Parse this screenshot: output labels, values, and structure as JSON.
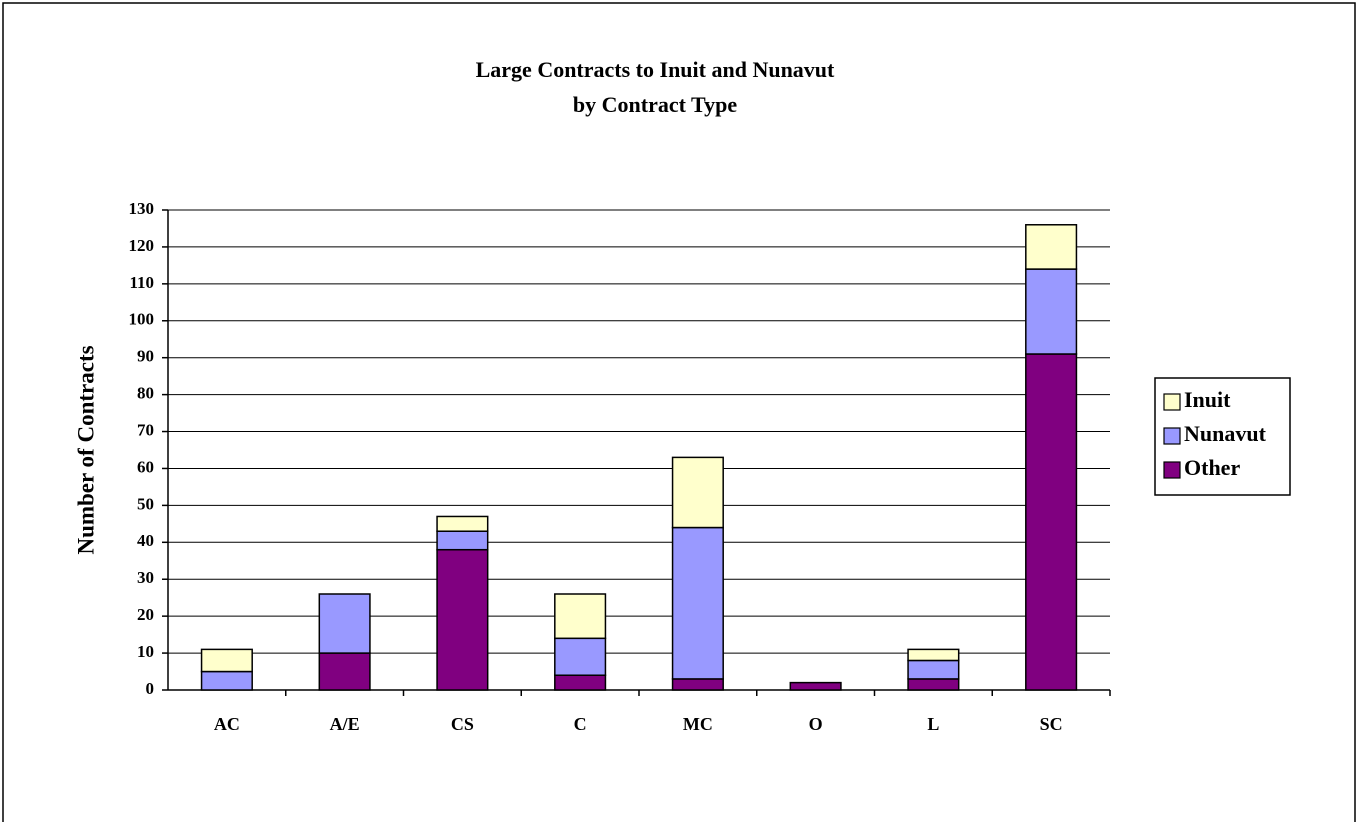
{
  "chart_data": {
    "type": "stacked_bar",
    "title": "Large Contracts to Inuit and Nunavut",
    "subtitle": "by Contract Type",
    "y_label": "Number of Contracts",
    "categories": [
      "AC",
      "A/E",
      "CS",
      "C",
      "MC",
      "O",
      "L",
      "SC"
    ],
    "series": [
      {
        "name": "Inuit",
        "color": "#ffffcc",
        "values": [
          6,
          0,
          4,
          12,
          19,
          0,
          3,
          12
        ]
      },
      {
        "name": "Nunavut",
        "color": "#9999ff",
        "values": [
          5,
          16,
          5,
          10,
          41,
          0,
          5,
          23
        ]
      },
      {
        "name": "Other",
        "color": "#800080",
        "values": [
          0,
          10,
          38,
          4,
          3,
          2,
          3,
          91
        ]
      }
    ],
    "ylim": [
      0,
      130
    ],
    "yticks": [
      0,
      10,
      20,
      30,
      40,
      50,
      60,
      70,
      80,
      90,
      100,
      110,
      120,
      130
    ],
    "grid": true,
    "legend": "right"
  }
}
